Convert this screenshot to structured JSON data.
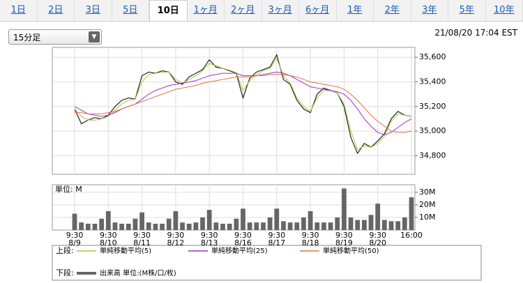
{
  "tabs": [
    {
      "label": "1日"
    },
    {
      "label": "2日"
    },
    {
      "label": "3日"
    },
    {
      "label": "5日"
    },
    {
      "label": "10日",
      "active": true
    },
    {
      "label": "1ヶ月"
    },
    {
      "label": "2ヶ月"
    },
    {
      "label": "3ヶ月"
    },
    {
      "label": "6ヶ月"
    },
    {
      "label": "1年"
    },
    {
      "label": "2年"
    },
    {
      "label": "3年"
    },
    {
      "label": "5年"
    },
    {
      "label": "10年"
    }
  ],
  "dropdown": "15分足",
  "timestamp": "21/08/20 17:04 EST",
  "chart_data": [
    {
      "type": "line",
      "legend_label": "上段:",
      "ylim": [
        34650,
        35680
      ],
      "yticks": [
        {
          "value": 34800,
          "label": "34,800"
        },
        {
          "value": 35000,
          "label": "35,000"
        },
        {
          "value": 35200,
          "label": "35,200"
        },
        {
          "value": 35400,
          "label": "35,400"
        },
        {
          "value": 35600,
          "label": "35,600"
        }
      ],
      "grid": true,
      "series": [
        {
          "color": "#222222",
          "values": [
            35180,
            35060,
            35090,
            35110,
            35100,
            35130,
            35200,
            35250,
            35270,
            35260,
            35450,
            35480,
            35470,
            35490,
            35480,
            35400,
            35380,
            35440,
            35470,
            35500,
            35580,
            35520,
            35510,
            35490,
            35470,
            35270,
            35430,
            35480,
            35500,
            35520,
            35620,
            35420,
            35380,
            35250,
            35180,
            35150,
            35300,
            35350,
            35330,
            35310,
            35200,
            34950,
            34820,
            34900,
            34870,
            34920,
            34980,
            35100,
            35160,
            35130,
            35120
          ]
        },
        {
          "name": "単純移動平均(5)",
          "color": "#a8c838",
          "values": [
            35180,
            35120,
            35090,
            35090,
            35100,
            35120,
            35170,
            35220,
            35250,
            35260,
            35400,
            35460,
            35470,
            35480,
            35480,
            35420,
            35390,
            35420,
            35450,
            35490,
            35550,
            35530,
            35510,
            35495,
            35475,
            35330,
            35410,
            35460,
            35490,
            35510,
            35590,
            35450,
            35390,
            35270,
            35200,
            35160,
            35270,
            35330,
            35330,
            35310,
            35220,
            35000,
            34850,
            34880,
            34870,
            34900,
            34960,
            35080,
            35140,
            35130,
            35120
          ]
        },
        {
          "name": "単純移動平均(25)",
          "color": "#9b30d0",
          "values": [
            35200,
            35170,
            35140,
            35130,
            35120,
            35130,
            35150,
            35180,
            35200,
            35220,
            35260,
            35300,
            35330,
            35350,
            35370,
            35380,
            35390,
            35400,
            35410,
            35430,
            35450,
            35460,
            35470,
            35470,
            35470,
            35450,
            35450,
            35450,
            35460,
            35470,
            35480,
            35470,
            35450,
            35420,
            35390,
            35360,
            35350,
            35340,
            35330,
            35320,
            35300,
            35250,
            35180,
            35100,
            35040,
            34990,
            34970,
            34990,
            35030,
            35070,
            35100
          ]
        },
        {
          "name": "単純移動平均(50)",
          "color": "#e07050",
          "values": [
            35150,
            35150,
            35140,
            35140,
            35140,
            35150,
            35160,
            35180,
            35200,
            35220,
            35240,
            35260,
            35280,
            35300,
            35320,
            35340,
            35350,
            35360,
            35370,
            35390,
            35400,
            35410,
            35420,
            35430,
            35440,
            35440,
            35440,
            35450,
            35450,
            35460,
            35460,
            35460,
            35450,
            35440,
            35420,
            35400,
            35390,
            35380,
            35370,
            35360,
            35340,
            35300,
            35250,
            35190,
            35130,
            35080,
            35040,
            35000,
            34990,
            34990,
            35000
          ]
        }
      ]
    },
    {
      "type": "bar",
      "legend_label": "下段:",
      "unit_label": "単位: M",
      "categories": [
        "9:30",
        null,
        null,
        null,
        null,
        "9:30",
        null,
        null,
        null,
        null,
        "9:30",
        null,
        null,
        null,
        null,
        "9:30",
        null,
        null,
        null,
        null,
        "9:30",
        null,
        null,
        null,
        null,
        "9:30",
        null,
        null,
        null,
        null,
        "9:30",
        null,
        null,
        null,
        null,
        "9:30",
        null,
        null,
        null,
        null,
        "9:30",
        null,
        null,
        null,
        null,
        "9:30",
        null,
        null,
        null,
        null,
        "16:00"
      ],
      "dates": [
        "8/9",
        null,
        null,
        null,
        null,
        "8/10",
        null,
        null,
        null,
        null,
        "8/11",
        null,
        null,
        null,
        null,
        "8/12",
        null,
        null,
        null,
        null,
        "8/13",
        null,
        null,
        null,
        null,
        "8/16",
        null,
        null,
        null,
        null,
        "8/17",
        null,
        null,
        null,
        null,
        "8/18",
        null,
        null,
        null,
        null,
        "8/19",
        null,
        null,
        null,
        null,
        "8/20",
        null,
        null,
        null,
        null,
        null
      ],
      "ylim": [
        0,
        36
      ],
      "yticks": [
        {
          "value": 10,
          "label": "10M"
        },
        {
          "value": 20,
          "label": "20M"
        },
        {
          "value": 30,
          "label": "30M"
        }
      ],
      "grid": true,
      "series": [
        {
          "name": "出来高 単位:(M株/口/枚)",
          "color": "#666666",
          "values": [
            13,
            6,
            5,
            5,
            9,
            15,
            6,
            5,
            5,
            9,
            14,
            6,
            5,
            5,
            9,
            15,
            6,
            5,
            6,
            10,
            16,
            6,
            5,
            5,
            9,
            17,
            6,
            6,
            6,
            10,
            17,
            7,
            6,
            6,
            10,
            15,
            6,
            6,
            6,
            10,
            33,
            10,
            8,
            8,
            12,
            21,
            8,
            7,
            7,
            10,
            26
          ]
        }
      ]
    }
  ]
}
